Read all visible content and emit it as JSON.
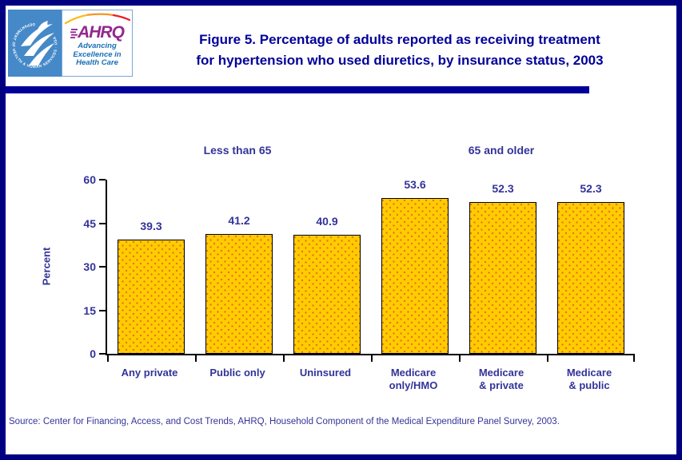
{
  "header": {
    "title_line1": "Figure 5. Percentage of adults reported as receiving treatment",
    "title_line2": "for hypertension who used diuretics, by insurance status, 2003",
    "logos": {
      "hhs_seal_text": "DEPARTMENT OF HEALTH & HUMAN SERVICES · USA",
      "ahrq_acronym": "AHRQ",
      "ahrq_tagline": [
        "Advancing",
        "Excellence in",
        "Health Care"
      ]
    }
  },
  "chart_data": {
    "type": "bar",
    "title": "Percentage of adults reported as receiving treatment for hypertension who used diuretics, by insurance status, 2003",
    "ylabel": "Percent",
    "xlabel": "",
    "ylim": [
      0,
      60
    ],
    "yticks": [
      0,
      15,
      30,
      45,
      60
    ],
    "grid": false,
    "legend": "none",
    "group_labels": [
      "Less than 65",
      "65 and older"
    ],
    "categories": [
      "Any private",
      "Public only",
      "Uninsured",
      "Medicare\nonly/HMO",
      "Medicare\n& private",
      "Medicare\n& public"
    ],
    "values": [
      39.3,
      41.2,
      40.9,
      53.6,
      52.3,
      52.3
    ],
    "bar_fill": "#FFCC00",
    "bar_dot": "#E8731E",
    "bar_border": "#000000"
  },
  "footer": {
    "source": "Source: Center for Financing, Access, and Cost Trends, AHRQ, Household Component of the Medical Expenditure Panel Survey, 2003."
  },
  "colors": {
    "page_border": "#000080",
    "title_navy": "#000099",
    "label_blue": "#333399",
    "hhs_blue": "#4589C8",
    "ahrq_purple": "#92278F",
    "tagline_blue": "#1A6FB5"
  }
}
